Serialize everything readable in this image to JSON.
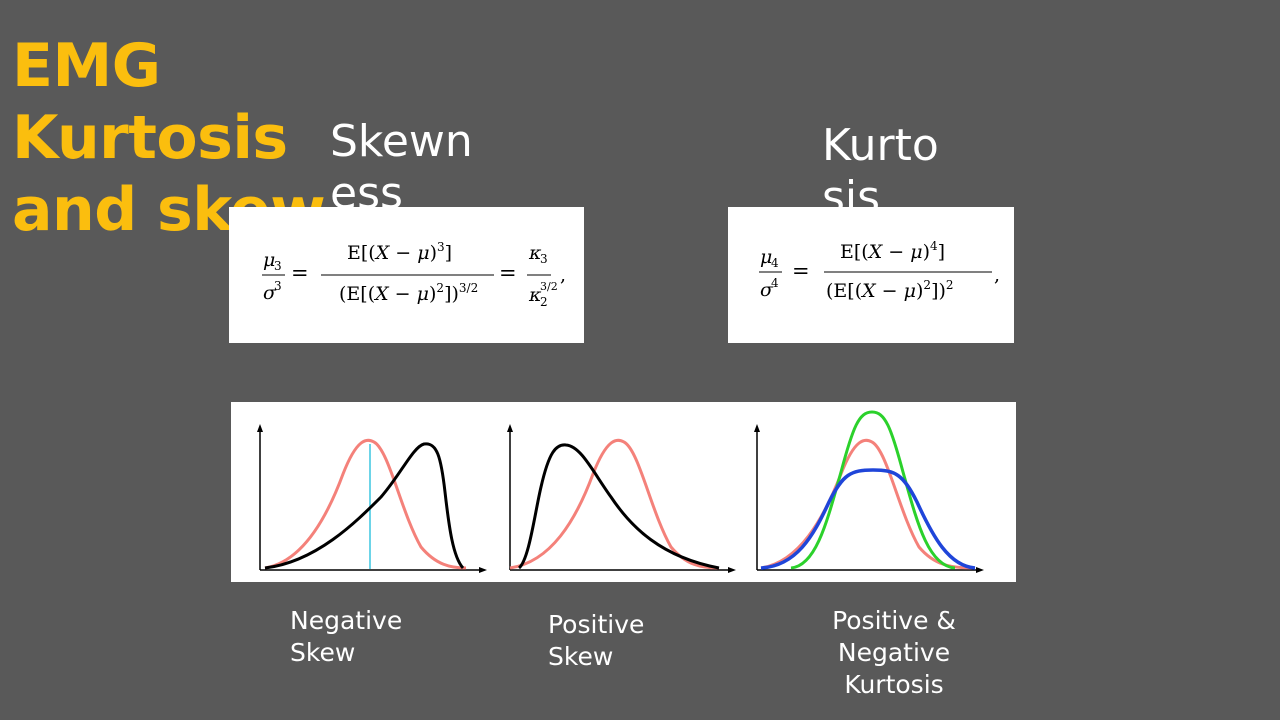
{
  "title": {
    "line1": "EMG Kurtosis",
    "line2": "and skew"
  },
  "headings": {
    "skewness": {
      "line1": "Skewn",
      "line2": "ess"
    },
    "kurtosis": {
      "line1": "Kurto",
      "line2": "sis"
    }
  },
  "colors": {
    "background": "#595959",
    "title": "#FBBE0E",
    "reference_curve": "#F4817A",
    "skew_curve": "#000000",
    "mean_line": "#3BC6E0",
    "leptokurtic": "#2BD12B",
    "platykurtic": "#1F45D9"
  },
  "captions": {
    "negative_skew": {
      "line1": "Negative",
      "line2": "Skew"
    },
    "positive_skew": {
      "line1": "Positive",
      "line2": "Skew"
    },
    "kurtosis": {
      "line1": "Positive &",
      "line2": "Negative",
      "line3": "Kurtosis"
    }
  }
}
